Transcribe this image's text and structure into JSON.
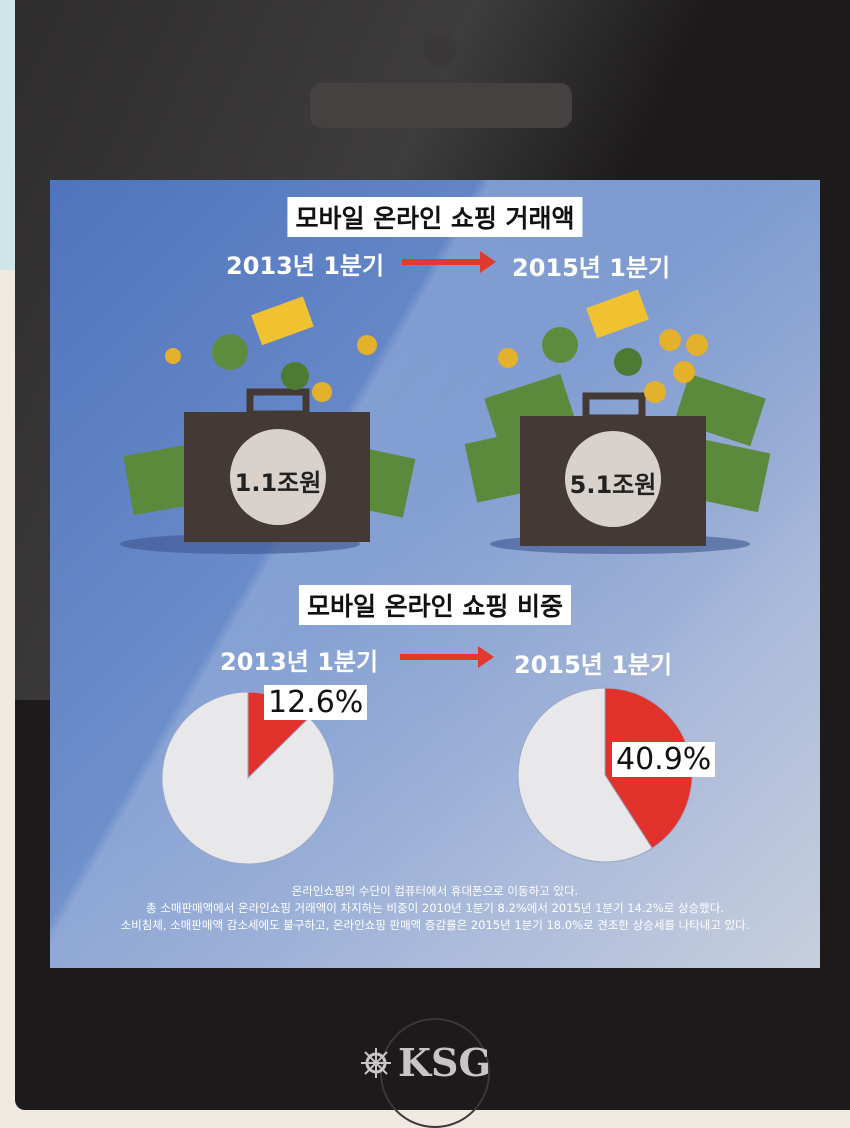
{
  "sections": [
    {
      "title": "모바일 온라인 쇼핑 거래액",
      "from_label": "2013년 1분기",
      "to_label": "2015년 1분기",
      "from_value": "1.1조원",
      "to_value": "5.1조원"
    },
    {
      "title": "모바일 온라인 쇼핑 비중",
      "from_label": "2013년 1분기",
      "to_label": "2015년 1분기"
    }
  ],
  "chart_data": [
    {
      "type": "pie",
      "title": "2013년 1분기",
      "values": [
        12.6,
        87.4
      ],
      "labels": [
        "12.6%",
        ""
      ],
      "colors": [
        "#e0322b",
        "#e8e8ea"
      ]
    },
    {
      "type": "pie",
      "title": "2015년 1분기",
      "values": [
        40.9,
        59.1
      ],
      "labels": [
        "40.9%",
        ""
      ],
      "colors": [
        "#e0322b",
        "#e8e8ea"
      ]
    }
  ],
  "caption": [
    "온라인쇼핑의 수단이 컴퓨터에서 휴대폰으로 이동하고 있다.",
    "총 소매판매액에서 온라인쇼핑 거래액이 차지하는 비중이 2010년 1분기 8.2%에서 2015년 1분기 14.2%로 상승했다.",
    "소비침체, 소매판매액 감소세에도 불구하고, 온라인쇼핑 판매액 증감률은 2015년 1분기 18.0%로 견조한 상승세를 나타내고 있다."
  ],
  "logo": "KSG"
}
